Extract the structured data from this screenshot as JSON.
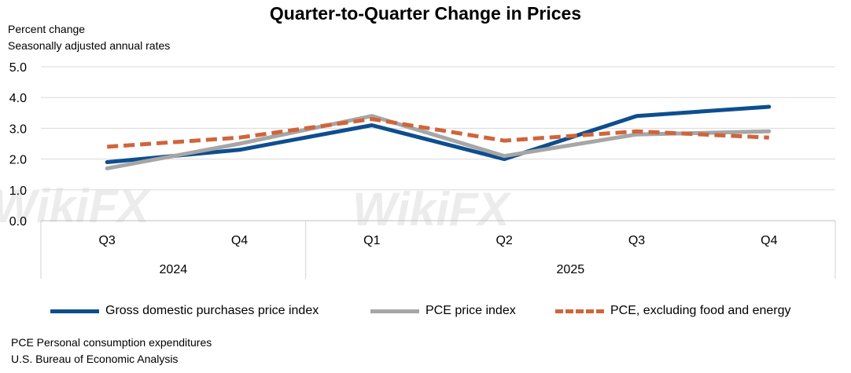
{
  "chart_data": {
    "type": "line",
    "title": "Quarter-to-Quarter Change in Prices",
    "ylabel_lines": [
      "Percent change",
      "Seasonally adjusted annual rates"
    ],
    "ylim": [
      0,
      5
    ],
    "yticks": [
      "5.0",
      "4.0",
      "3.0",
      "2.0",
      "1.0",
      "0.0"
    ],
    "ytick_values": [
      5,
      4,
      3,
      2,
      1,
      0
    ],
    "categories": [
      "Q3",
      "Q4",
      "Q1",
      "Q2",
      "Q3",
      "Q4"
    ],
    "category_groups": [
      {
        "label": "2024",
        "span": [
          0,
          1
        ]
      },
      {
        "label": "2025",
        "span": [
          2,
          5
        ]
      }
    ],
    "grid": true,
    "legend_position": "bottom",
    "series": [
      {
        "name": "Gross domestic purchases price index",
        "values": [
          1.9,
          2.3,
          3.1,
          2.0,
          3.4,
          3.7
        ],
        "color": "#0d4e8f",
        "style": "solid"
      },
      {
        "name": "PCE price index",
        "values": [
          1.7,
          2.5,
          3.4,
          2.1,
          2.8,
          2.9
        ],
        "color": "#a6a6a6",
        "style": "solid"
      },
      {
        "name": "PCE, excluding food and energy",
        "values": [
          2.4,
          2.7,
          3.3,
          2.6,
          2.9,
          2.7
        ],
        "color": "#d0643a",
        "style": "dashed"
      }
    ]
  },
  "footnotes": [
    "PCE Personal consumption expenditures",
    "U.S. Bureau of Economic Analysis"
  ],
  "watermark": "WikiFX"
}
